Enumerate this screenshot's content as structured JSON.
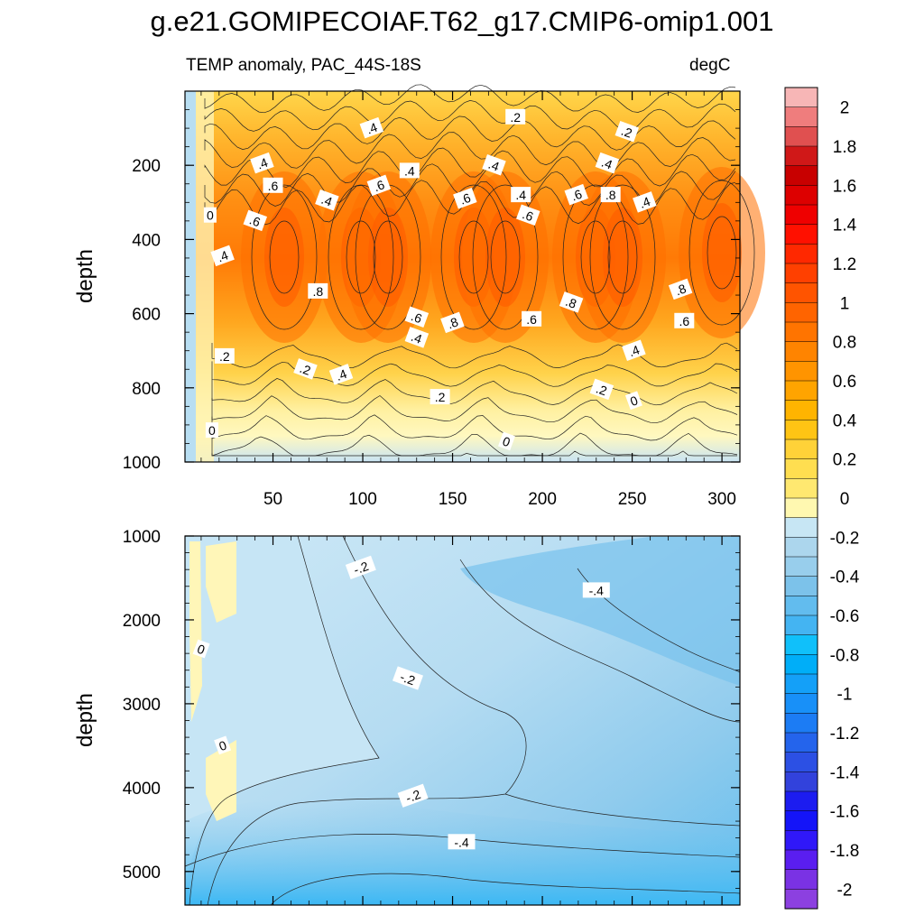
{
  "title": "g.e21.GOMIPECOIAF.T62_g17.CMIP6-omip1.001",
  "subtitle": "TEMP anomaly, PAC_44S-18S",
  "units": "degC",
  "chart_data": {
    "type": "heatmap",
    "x_axis": {
      "range": [
        1,
        310
      ],
      "ticks": [
        "50",
        "100",
        "150",
        "200",
        "250",
        "300"
      ]
    },
    "panels": [
      {
        "name": "upper",
        "ylabel": "depth",
        "yrange": [
          0,
          1000
        ],
        "yticks": [
          200,
          400,
          600,
          800,
          1000
        ],
        "ytick_labels": [
          "200",
          "400",
          "600",
          "800",
          "1000"
        ],
        "contour_labels": [
          {
            "text": ".4",
            "x": 105,
            "y": 100
          },
          {
            "text": ".2",
            "x": 185,
            "y": 70
          },
          {
            "text": ".2",
            "x": 247,
            "y": 110
          },
          {
            "text": ".4",
            "x": 44,
            "y": 195
          },
          {
            "text": ".6",
            "x": 50,
            "y": 255
          },
          {
            "text": ".4",
            "x": 80,
            "y": 295
          },
          {
            "text": ".6",
            "x": 109,
            "y": 255
          },
          {
            "text": ".4",
            "x": 126,
            "y": 215
          },
          {
            "text": ".4",
            "x": 173,
            "y": 200
          },
          {
            "text": ".6",
            "x": 157,
            "y": 290
          },
          {
            "text": ".4",
            "x": 188,
            "y": 280
          },
          {
            "text": ".6",
            "x": 192,
            "y": 335
          },
          {
            "text": ".6",
            "x": 219,
            "y": 280
          },
          {
            "text": ".8",
            "x": 238,
            "y": 280
          },
          {
            "text": ".4",
            "x": 236,
            "y": 195
          },
          {
            "text": ".4",
            "x": 257,
            "y": 300
          },
          {
            "text": "0",
            "x": 15,
            "y": 335
          },
          {
            "text": ".6",
            "x": 40,
            "y": 350
          },
          {
            "text": ".4",
            "x": 22,
            "y": 445
          },
          {
            "text": ".8",
            "x": 75,
            "y": 540
          },
          {
            "text": ".6",
            "x": 130,
            "y": 610
          },
          {
            "text": ".8",
            "x": 150,
            "y": 625
          },
          {
            "text": ".6",
            "x": 194,
            "y": 615
          },
          {
            "text": ".8",
            "x": 216,
            "y": 570
          },
          {
            "text": ".8",
            "x": 277,
            "y": 535
          },
          {
            "text": ".6",
            "x": 279,
            "y": 620
          },
          {
            "text": ".4",
            "x": 130,
            "y": 665
          },
          {
            "text": ".4",
            "x": 251,
            "y": 700
          },
          {
            "text": ".2",
            "x": 23,
            "y": 715
          },
          {
            "text": ".2",
            "x": 68,
            "y": 750
          },
          {
            "text": ".4",
            "x": 88,
            "y": 765
          },
          {
            "text": ".2",
            "x": 143,
            "y": 825
          },
          {
            "text": ".2",
            "x": 233,
            "y": 805
          },
          {
            "text": "0",
            "x": 251,
            "y": 835
          },
          {
            "text": "0",
            "x": 16,
            "y": 915
          },
          {
            "text": "0",
            "x": 180,
            "y": 945
          }
        ]
      },
      {
        "name": "lower",
        "ylabel": "depth",
        "yrange": [
          1000,
          5400
        ],
        "yticks": [
          1000,
          2000,
          3000,
          4000,
          5000
        ],
        "ytick_labels": [
          "1000",
          "2000",
          "3000",
          "4000",
          "5000"
        ],
        "contour_labels": [
          {
            "text": "-.2",
            "x": 99,
            "y": 1380
          },
          {
            "text": "-.4",
            "x": 230,
            "y": 1650
          },
          {
            "text": "-.2",
            "x": 125,
            "y": 2700
          },
          {
            "text": "-.2",
            "x": 128,
            "y": 4100
          },
          {
            "text": "-.4",
            "x": 155,
            "y": 4650
          },
          {
            "text": "0",
            "x": 10,
            "y": 2350
          },
          {
            "text": "0",
            "x": 22,
            "y": 3500
          }
        ]
      }
    ],
    "colorbar": {
      "levels": [
        "2",
        "1.8",
        "1.6",
        "1.4",
        "1.2",
        "1",
        "0.8",
        "0.6",
        "0.4",
        "0.2",
        "0",
        "-0.2",
        "-0.4",
        "-0.6",
        "-0.8",
        "-1",
        "-1.2",
        "-1.4",
        "-1.6",
        "-1.8",
        "-2"
      ],
      "colors_top_to_bottom": [
        "#f7b6b6",
        "#ef7d7d",
        "#e05050",
        "#d01818",
        "#c80000",
        "#dd0000",
        "#ef0000",
        "#ff1000",
        "#ff2800",
        "#ff4000",
        "#ff5400",
        "#ff6400",
        "#ff7400",
        "#ff8400",
        "#ff9400",
        "#ffa400",
        "#ffb400",
        "#ffc414",
        "#ffd238",
        "#ffde50",
        "#ffe870",
        "#fff8b0",
        "#c7e6f4",
        "#acd6ed",
        "#98ceec",
        "#7cc2ea",
        "#62bcee",
        "#44b4f2",
        "#10c0fa",
        "#00aef8",
        "#14a0f8",
        "#1890f8",
        "#1c7cf4",
        "#2464ec",
        "#2c50e4",
        "#3242dc",
        "#1c1cf0",
        "#1414f8",
        "#3018f8",
        "#5a1ef0",
        "#7a32e4",
        "#8c40e0"
      ]
    }
  }
}
